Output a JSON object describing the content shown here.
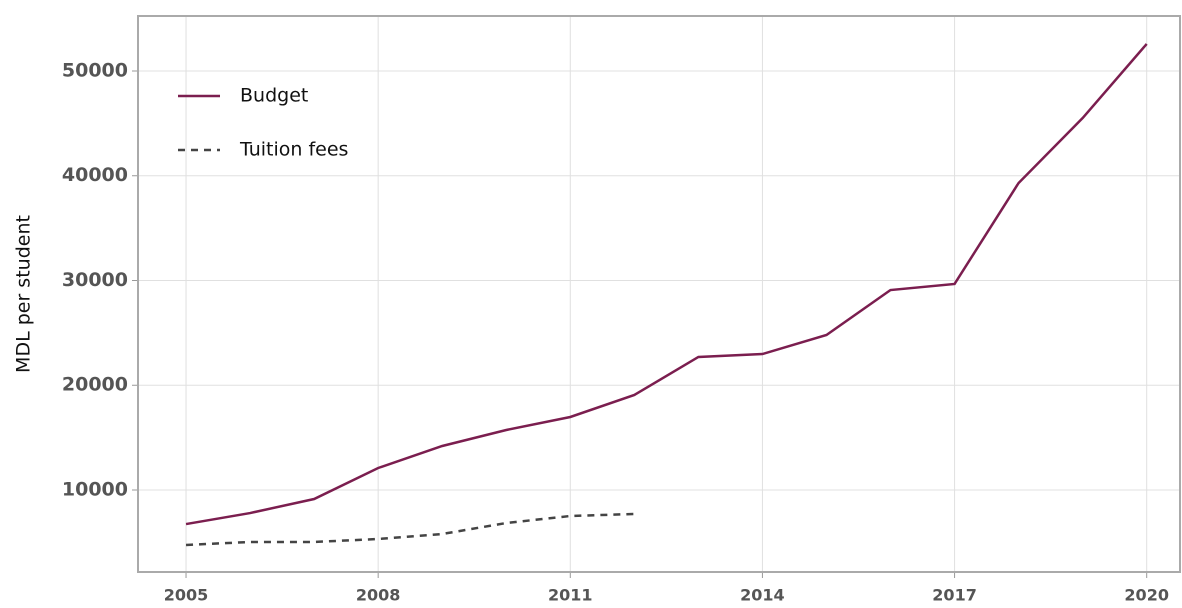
{
  "chart_data": {
    "type": "line",
    "y_label": "MDL per student",
    "x": [
      2005,
      2006,
      2007,
      2008,
      2009,
      2010,
      2011,
      2012,
      2013,
      2014,
      2015,
      2016,
      2017,
      2018,
      2019,
      2020
    ],
    "series": [
      {
        "name": "Budget",
        "color": "#7b1e4f",
        "dash": false,
        "values": [
          6750,
          7800,
          9140,
          12100,
          14200,
          15730,
          16970,
          19070,
          22700,
          22980,
          24800,
          29090,
          29670,
          39310,
          45510,
          52580
        ]
      },
      {
        "name": "Tuition fees",
        "color": "#444444",
        "dash": true,
        "values": [
          4750,
          5040,
          5040,
          5320,
          5800,
          6850,
          7520,
          7710,
          null,
          null,
          null,
          null,
          null,
          null,
          null,
          null
        ]
      }
    ],
    "xlim": [
      2004.25,
      2020.52
    ],
    "xticks": [
      2005,
      2008,
      2011,
      2014,
      2017,
      2020
    ],
    "ylim": [
      2172,
      55250
    ],
    "yticks": [
      10000,
      20000,
      30000,
      40000,
      50000
    ],
    "grid": true,
    "legend": "upper left"
  }
}
